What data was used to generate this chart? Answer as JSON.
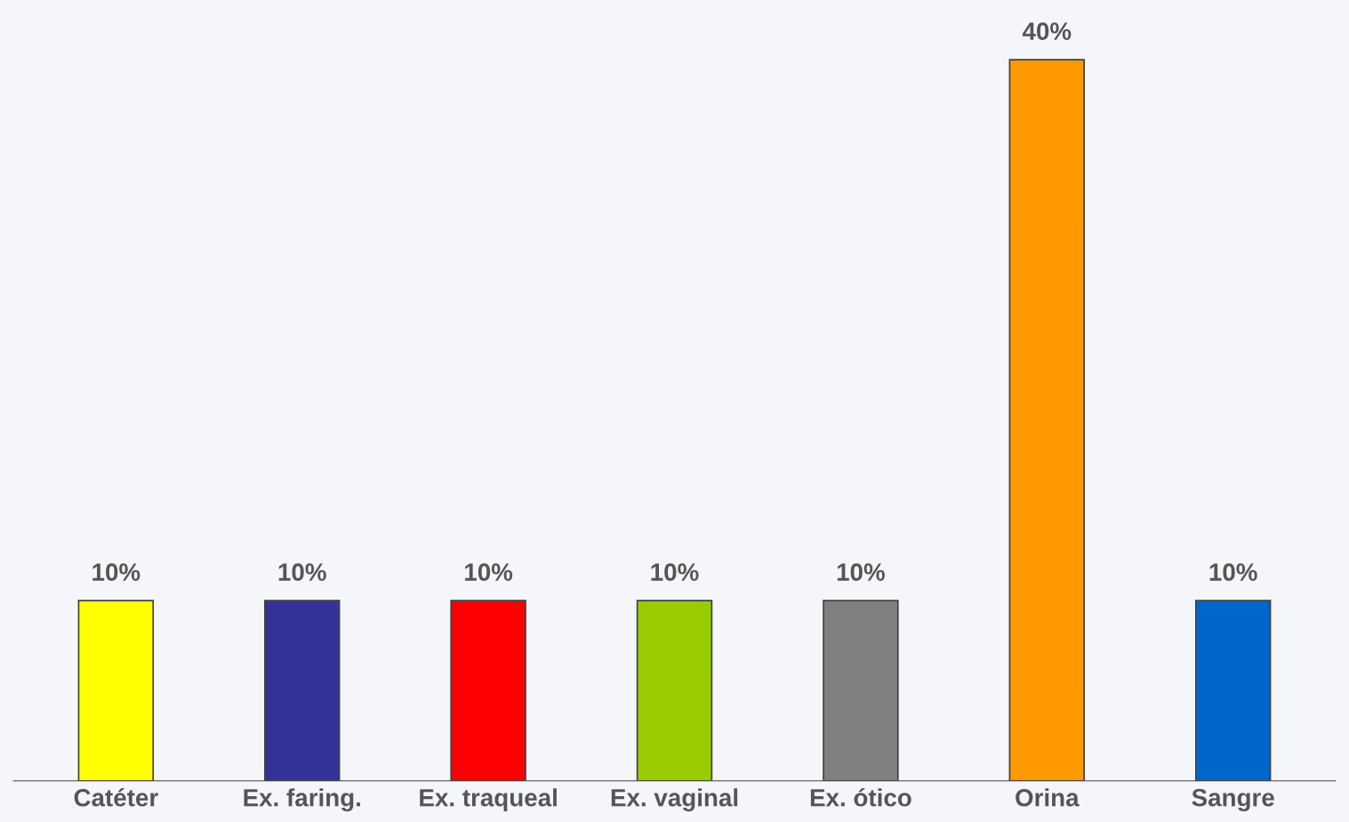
{
  "chart_data": {
    "type": "bar",
    "categories": [
      "Catéter",
      "Ex. faring.",
      "Ex. traqueal",
      "Ex. vaginal",
      "Ex. ótico",
      "Orina",
      "Sangre"
    ],
    "values": [
      10,
      10,
      10,
      10,
      10,
      40,
      10
    ],
    "value_labels": [
      "10%",
      "10%",
      "10%",
      "10%",
      "10%",
      "40%",
      "10%"
    ],
    "colors": [
      "#ffff00",
      "#333399",
      "#ff0000",
      "#99cc00",
      "#808080",
      "#ff9900",
      "#0066cc"
    ],
    "grid": false,
    "legend": false
  }
}
